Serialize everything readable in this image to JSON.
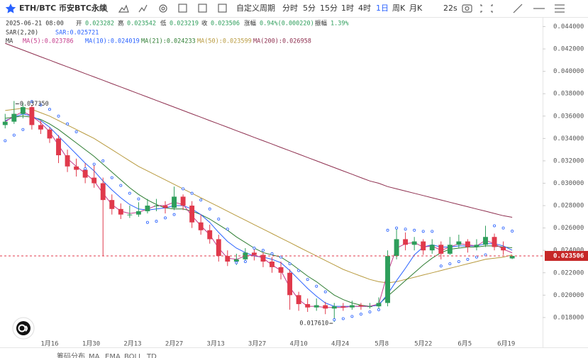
{
  "toolbar": {
    "symbol": "ETH/BTC 币安BTC永续",
    "custom": "自定义周期",
    "periods": [
      "分时",
      "5分",
      "15分",
      "1时",
      "4时",
      "1日",
      "周K",
      "月K"
    ],
    "active_period": 5,
    "timer": "22s"
  },
  "bottom_bar": [
    "筹码分布",
    "MA",
    "EMA",
    "BOLL",
    "TD"
  ],
  "chart_data": {
    "type": "candlestick",
    "info": {
      "date": "2025-06-21 08:00",
      "fields": [
        {
          "label": "开",
          "value": "0.023282"
        },
        {
          "label": "高",
          "value": "0.023542"
        },
        {
          "label": "低",
          "value": "0.023219"
        },
        {
          "label": "收",
          "value": "0.023506"
        },
        {
          "label": "涨幅",
          "value": "0.94%(0.000220)"
        },
        {
          "label": "振幅",
          "value": "1.39%"
        }
      ]
    },
    "ma_title": "MA",
    "up_color": "#2e9e5b",
    "down_color": "#e0394b",
    "categories": [
      null,
      null,
      null,
      null,
      null,
      null,
      null,
      null,
      null,
      null,
      null,
      null,
      null,
      null,
      null,
      null,
      null,
      null,
      null,
      null,
      null,
      null,
      null,
      null,
      null,
      null,
      null,
      null,
      null,
      null,
      null,
      null,
      null,
      null,
      null,
      null,
      null,
      null,
      null,
      null,
      null,
      null,
      null,
      null,
      null,
      null,
      null,
      null,
      null,
      null,
      null,
      null,
      null,
      null,
      null,
      null,
      null,
      null
    ],
    "candles": [
      [
        0.0352,
        0.0362,
        0.0349,
        0.0355
      ],
      [
        0.0355,
        0.03735,
        0.0353,
        0.0362
      ],
      [
        0.0362,
        0.0372,
        0.0358,
        0.0368
      ],
      [
        0.0368,
        0.037,
        0.0348,
        0.0352
      ],
      [
        0.0352,
        0.0356,
        0.0344,
        0.0348
      ],
      [
        0.0348,
        0.035,
        0.0336,
        0.034
      ],
      [
        0.034,
        0.0343,
        0.0318,
        0.0325
      ],
      [
        0.0325,
        0.033,
        0.031,
        0.0315
      ],
      [
        0.0315,
        0.0322,
        0.0306,
        0.0312
      ],
      [
        0.0312,
        0.0318,
        0.03,
        0.0305
      ],
      [
        0.0305,
        0.0316,
        0.0296,
        0.03
      ],
      [
        0.03,
        0.0305,
        0.0235,
        0.0285
      ],
      [
        0.0285,
        0.029,
        0.0272,
        0.0277
      ],
      [
        0.0277,
        0.0282,
        0.0268,
        0.0272
      ],
      [
        0.0272,
        0.028,
        0.0269,
        0.0272
      ],
      [
        0.0272,
        0.0283,
        0.027,
        0.0275
      ],
      [
        0.0275,
        0.0286,
        0.0273,
        0.028
      ],
      [
        0.028,
        0.0286,
        0.0275,
        0.028
      ],
      [
        0.028,
        0.0284,
        0.0273,
        0.0278
      ],
      [
        0.0278,
        0.0297,
        0.0276,
        0.0288
      ],
      [
        0.0288,
        0.029,
        0.0276,
        0.028
      ],
      [
        0.028,
        0.0284,
        0.026,
        0.0265
      ],
      [
        0.0265,
        0.0272,
        0.0254,
        0.0258
      ],
      [
        0.0258,
        0.0263,
        0.0246,
        0.025
      ],
      [
        0.025,
        0.0254,
        0.023,
        0.0235
      ],
      [
        0.0235,
        0.024,
        0.0226,
        0.023
      ],
      [
        0.023,
        0.0237,
        0.0227,
        0.0232
      ],
      [
        0.0232,
        0.0242,
        0.0229,
        0.0238
      ],
      [
        0.0238,
        0.0241,
        0.0231,
        0.0236
      ],
      [
        0.0236,
        0.0238,
        0.0225,
        0.023
      ],
      [
        0.023,
        0.0234,
        0.022,
        0.0225
      ],
      [
        0.0225,
        0.023,
        0.0214,
        0.022
      ],
      [
        0.022,
        0.0223,
        0.0187,
        0.02
      ],
      [
        0.02,
        0.0203,
        0.0186,
        0.0192
      ],
      [
        0.0192,
        0.0197,
        0.0185,
        0.0189
      ],
      [
        0.0189,
        0.0197,
        0.0186,
        0.0191
      ],
      [
        0.0191,
        0.0194,
        0.0183,
        0.0188
      ],
      [
        0.0188,
        0.0193,
        0.01761,
        0.019
      ],
      [
        0.019,
        0.0193,
        0.0186,
        0.0189
      ],
      [
        0.0189,
        0.0195,
        0.0187,
        0.0191
      ],
      [
        0.0191,
        0.0193,
        0.0187,
        0.019
      ],
      [
        0.019,
        0.0193,
        0.0188,
        0.019
      ],
      [
        0.019,
        0.0198,
        0.0188,
        0.0193
      ],
      [
        0.0193,
        0.024,
        0.019,
        0.0235
      ],
      [
        0.0235,
        0.0261,
        0.0232,
        0.025
      ],
      [
        0.025,
        0.0256,
        0.024,
        0.0245
      ],
      [
        0.0245,
        0.0252,
        0.024,
        0.0248
      ],
      [
        0.0248,
        0.025,
        0.0236,
        0.024
      ],
      [
        0.024,
        0.025,
        0.0237,
        0.0245
      ],
      [
        0.0245,
        0.0248,
        0.0232,
        0.0237
      ],
      [
        0.0237,
        0.0252,
        0.0236,
        0.0245
      ],
      [
        0.0245,
        0.0254,
        0.0242,
        0.0248
      ],
      [
        0.0248,
        0.025,
        0.0238,
        0.0243
      ],
      [
        0.0243,
        0.025,
        0.024,
        0.0245
      ],
      [
        0.0245,
        0.0262,
        0.0243,
        0.0252
      ],
      [
        0.0252,
        0.0255,
        0.024,
        0.0243
      ],
      [
        0.0243,
        0.0248,
        0.0236,
        0.024
      ],
      [
        0.023282,
        0.023542,
        0.023219,
        0.023506
      ]
    ],
    "series": [
      {
        "name": "MA(5):0.023786",
        "color": "#c4398a",
        "values": [
          0.0355,
          0.036,
          0.0364,
          0.036,
          0.0354,
          0.0346,
          0.0334,
          0.0322,
          0.0315,
          0.0309,
          0.0302,
          0.0291,
          0.0281,
          0.0275,
          0.0273,
          0.0274,
          0.0277,
          0.028,
          0.028,
          0.0283,
          0.0281,
          0.0271,
          0.0262,
          0.0254,
          0.0242,
          0.0233,
          0.0232,
          0.0235,
          0.0236,
          0.0233,
          0.0227,
          0.0222,
          0.0207,
          0.0196,
          0.019,
          0.019,
          0.0189,
          0.0189,
          0.0189,
          0.019,
          0.019,
          0.019,
          0.0192,
          0.022,
          0.0242,
          0.0246,
          0.0247,
          0.0243,
          0.0244,
          0.024,
          0.0243,
          0.0246,
          0.0245,
          0.0244,
          0.0249,
          0.0246,
          0.0241,
          0.023786
        ]
      },
      {
        "name": "MA(10):0.024019",
        "color": "#2962ff",
        "values": [
          0.0356,
          0.0359,
          0.0362,
          0.036,
          0.0356,
          0.035,
          0.0342,
          0.0334,
          0.0326,
          0.0318,
          0.0311,
          0.0302,
          0.0294,
          0.0287,
          0.0281,
          0.0277,
          0.0276,
          0.0277,
          0.0278,
          0.028,
          0.028,
          0.0277,
          0.0272,
          0.0265,
          0.0256,
          0.0248,
          0.0242,
          0.0238,
          0.0235,
          0.0234,
          0.0232,
          0.0229,
          0.0222,
          0.0214,
          0.0206,
          0.0199,
          0.0193,
          0.019,
          0.019,
          0.019,
          0.019,
          0.019,
          0.0191,
          0.0201,
          0.0213,
          0.0224,
          0.0236,
          0.0243,
          0.0245,
          0.0243,
          0.0243,
          0.0244,
          0.0244,
          0.0244,
          0.0246,
          0.0246,
          0.0244,
          0.024019
        ]
      },
      {
        "name": "MA(21):0.024233",
        "color": "#2e7d32",
        "values": [
          0.0358,
          0.0359,
          0.036,
          0.0359,
          0.0357,
          0.0353,
          0.0348,
          0.0342,
          0.0336,
          0.033,
          0.0324,
          0.0317,
          0.031,
          0.0303,
          0.0296,
          0.029,
          0.0285,
          0.0281,
          0.0278,
          0.0277,
          0.0277,
          0.0275,
          0.0272,
          0.0268,
          0.0263,
          0.0258,
          0.0252,
          0.0247,
          0.0242,
          0.0238,
          0.0236,
          0.0234,
          0.0229,
          0.0223,
          0.0217,
          0.0212,
          0.0206,
          0.02,
          0.0196,
          0.0193,
          0.0191,
          0.019,
          0.0192,
          0.0199,
          0.0206,
          0.0213,
          0.022,
          0.0227,
          0.0233,
          0.0238,
          0.0241,
          0.0242,
          0.0243,
          0.0243,
          0.0244,
          0.0244,
          0.0243,
          0.024233
        ]
      },
      {
        "name": "MA(50):0.023599",
        "color": "#b89a3e",
        "values": [
          0.0365,
          0.0366,
          0.0367,
          0.0366,
          0.0363,
          0.036,
          0.0356,
          0.0352,
          0.0348,
          0.0344,
          0.034,
          0.0335,
          0.033,
          0.0325,
          0.032,
          0.0315,
          0.0311,
          0.0307,
          0.0303,
          0.0299,
          0.0295,
          0.0291,
          0.0287,
          0.0283,
          0.0279,
          0.0275,
          0.0271,
          0.0267,
          0.0263,
          0.0259,
          0.0255,
          0.0251,
          0.0247,
          0.0243,
          0.0239,
          0.0235,
          0.0231,
          0.0227,
          0.0223,
          0.022,
          0.0217,
          0.0214,
          0.0212,
          0.0211,
          0.0212,
          0.0214,
          0.0216,
          0.0218,
          0.022,
          0.0222,
          0.0224,
          0.0226,
          0.0228,
          0.023,
          0.0232,
          0.0233,
          0.0234,
          0.023599
        ]
      },
      {
        "name": "MA(200):0.026958",
        "color": "#8e2f4f",
        "values": [
          0.0425,
          0.0422,
          0.0419,
          0.0416,
          0.0413,
          0.041,
          0.0407,
          0.0404,
          0.0401,
          0.0398,
          0.0395,
          0.0392,
          0.0389,
          0.0386,
          0.0383,
          0.038,
          0.0377,
          0.0374,
          0.0371,
          0.0368,
          0.0365,
          0.0362,
          0.0359,
          0.0356,
          0.0353,
          0.035,
          0.0347,
          0.0344,
          0.0341,
          0.0338,
          0.0335,
          0.0332,
          0.0329,
          0.0326,
          0.0323,
          0.032,
          0.0317,
          0.0314,
          0.0311,
          0.0308,
          0.0305,
          0.0302,
          0.03,
          0.0297,
          0.0295,
          0.0293,
          0.0291,
          0.0289,
          0.0287,
          0.0285,
          0.0283,
          0.0281,
          0.0279,
          0.0277,
          0.0275,
          0.0273,
          0.0271,
          0.02696
        ]
      }
    ],
    "sar": {
      "name": "SAR(2,20)",
      "label": "SAR:0.025721",
      "color": "#2962ff",
      "values": [
        0.0338,
        0.0343,
        0.0348,
        0.0373,
        0.037,
        0.0366,
        0.036,
        0.0353,
        0.0346,
        0.0313,
        0.0317,
        0.032,
        0.0305,
        0.0298,
        0.0291,
        0.0286,
        0.0265,
        0.0266,
        0.0269,
        0.0272,
        0.0295,
        0.0291,
        0.0285,
        0.0277,
        0.0268,
        0.0259,
        0.0229,
        0.023,
        0.0242,
        0.024,
        0.0237,
        0.0234,
        0.0228,
        0.0222,
        0.0214,
        0.0208,
        0.0203,
        0.0178,
        0.0179,
        0.0181,
        0.0183,
        0.0185,
        0.0187,
        0.0258,
        0.026,
        0.0259,
        0.0258,
        0.0257,
        0.0257,
        0.0226,
        0.0228,
        0.023,
        0.0232,
        0.0234,
        0.0236,
        0.0262,
        0.026,
        0.025721
      ]
    },
    "annotations": [
      {
        "kind": "high",
        "value": 0.03735,
        "label": "0.037350"
      },
      {
        "kind": "low",
        "value": 0.01761,
        "label": "0.017610"
      }
    ],
    "xlim": [
      -0.58,
      60.42
    ],
    "xticks": [
      {
        "value": 5,
        "label": "1月16"
      },
      {
        "value": 9.67,
        "label": "1月30"
      },
      {
        "value": 14.33,
        "label": "2月13"
      },
      {
        "value": 19,
        "label": "2月27"
      },
      {
        "value": 23.67,
        "label": "3月13"
      },
      {
        "value": 28.33,
        "label": "3月27"
      },
      {
        "value": 33,
        "label": "4月10"
      },
      {
        "value": 37.67,
        "label": "4月24"
      },
      {
        "value": 42.33,
        "label": "5月8"
      },
      {
        "value": 47,
        "label": "5月22"
      },
      {
        "value": 51.67,
        "label": "6月5"
      },
      {
        "value": 56.33,
        "label": "6月19"
      }
    ],
    "ylim": [
      0.0166,
      0.0446
    ],
    "yticks": [
      {
        "value": 0.018,
        "label": "0.018000"
      },
      {
        "value": 0.02,
        "label": "0.020000"
      },
      {
        "value": 0.022,
        "label": "0.022000"
      },
      {
        "value": 0.024,
        "label": "0.024000"
      },
      {
        "value": 0.026,
        "label": "0.026000"
      },
      {
        "value": 0.028,
        "label": "0.028000"
      },
      {
        "value": 0.03,
        "label": "0.030000"
      },
      {
        "value": 0.032,
        "label": "0.032000"
      },
      {
        "value": 0.034,
        "label": "0.034000"
      },
      {
        "value": 0.036,
        "label": "0.036000"
      },
      {
        "value": 0.038,
        "label": "0.038000"
      },
      {
        "value": 0.04,
        "label": "0.040000"
      },
      {
        "value": 0.042,
        "label": "0.042000"
      },
      {
        "value": 0.044,
        "label": "0.044000"
      }
    ]
  }
}
